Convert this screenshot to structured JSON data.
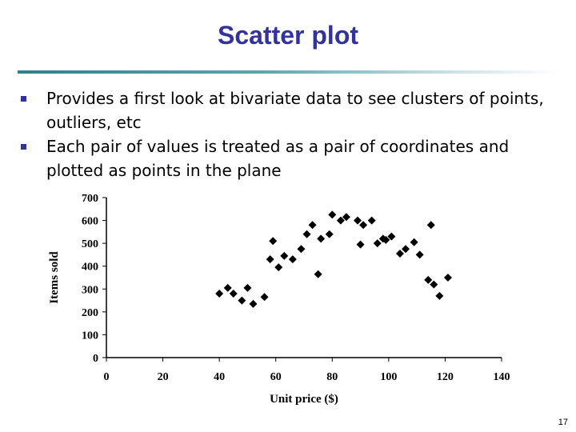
{
  "slide": {
    "title": "Scatter plot",
    "bullets": [
      "Provides a first look at bivariate data to see clusters of points, outliers, etc",
      "Each pair of values is treated as a pair of coordinates and plotted as points in the plane"
    ],
    "page_number": "17"
  },
  "colors": {
    "title": "#333399",
    "bullet": "#333399",
    "marker": "#000000"
  },
  "chart_data": {
    "type": "scatter",
    "title": "",
    "xlabel": "Unit price ($)",
    "ylabel": "Items sold",
    "xlim": [
      0,
      140
    ],
    "ylim": [
      0,
      700
    ],
    "xticks": [
      0,
      20,
      40,
      60,
      80,
      100,
      120,
      140
    ],
    "yticks": [
      0,
      100,
      200,
      300,
      400,
      500,
      600,
      700
    ],
    "grid": false,
    "marker": "diamond",
    "points": [
      {
        "x": 40,
        "y": 280
      },
      {
        "x": 43,
        "y": 305
      },
      {
        "x": 45,
        "y": 280
      },
      {
        "x": 48,
        "y": 250
      },
      {
        "x": 50,
        "y": 305
      },
      {
        "x": 52,
        "y": 235
      },
      {
        "x": 56,
        "y": 265
      },
      {
        "x": 58,
        "y": 430
      },
      {
        "x": 59,
        "y": 510
      },
      {
        "x": 61,
        "y": 395
      },
      {
        "x": 63,
        "y": 445
      },
      {
        "x": 66,
        "y": 430
      },
      {
        "x": 69,
        "y": 475
      },
      {
        "x": 71,
        "y": 540
      },
      {
        "x": 73,
        "y": 580
      },
      {
        "x": 75,
        "y": 365
      },
      {
        "x": 76,
        "y": 520
      },
      {
        "x": 79,
        "y": 540
      },
      {
        "x": 80,
        "y": 625
      },
      {
        "x": 83,
        "y": 600
      },
      {
        "x": 85,
        "y": 615
      },
      {
        "x": 89,
        "y": 600
      },
      {
        "x": 90,
        "y": 495
      },
      {
        "x": 91,
        "y": 580
      },
      {
        "x": 94,
        "y": 600
      },
      {
        "x": 96,
        "y": 500
      },
      {
        "x": 98,
        "y": 520
      },
      {
        "x": 99,
        "y": 515
      },
      {
        "x": 101,
        "y": 530
      },
      {
        "x": 104,
        "y": 455
      },
      {
        "x": 106,
        "y": 475
      },
      {
        "x": 109,
        "y": 505
      },
      {
        "x": 111,
        "y": 450
      },
      {
        "x": 114,
        "y": 340
      },
      {
        "x": 115,
        "y": 580
      },
      {
        "x": 116,
        "y": 320
      },
      {
        "x": 118,
        "y": 270
      },
      {
        "x": 121,
        "y": 350
      }
    ]
  }
}
